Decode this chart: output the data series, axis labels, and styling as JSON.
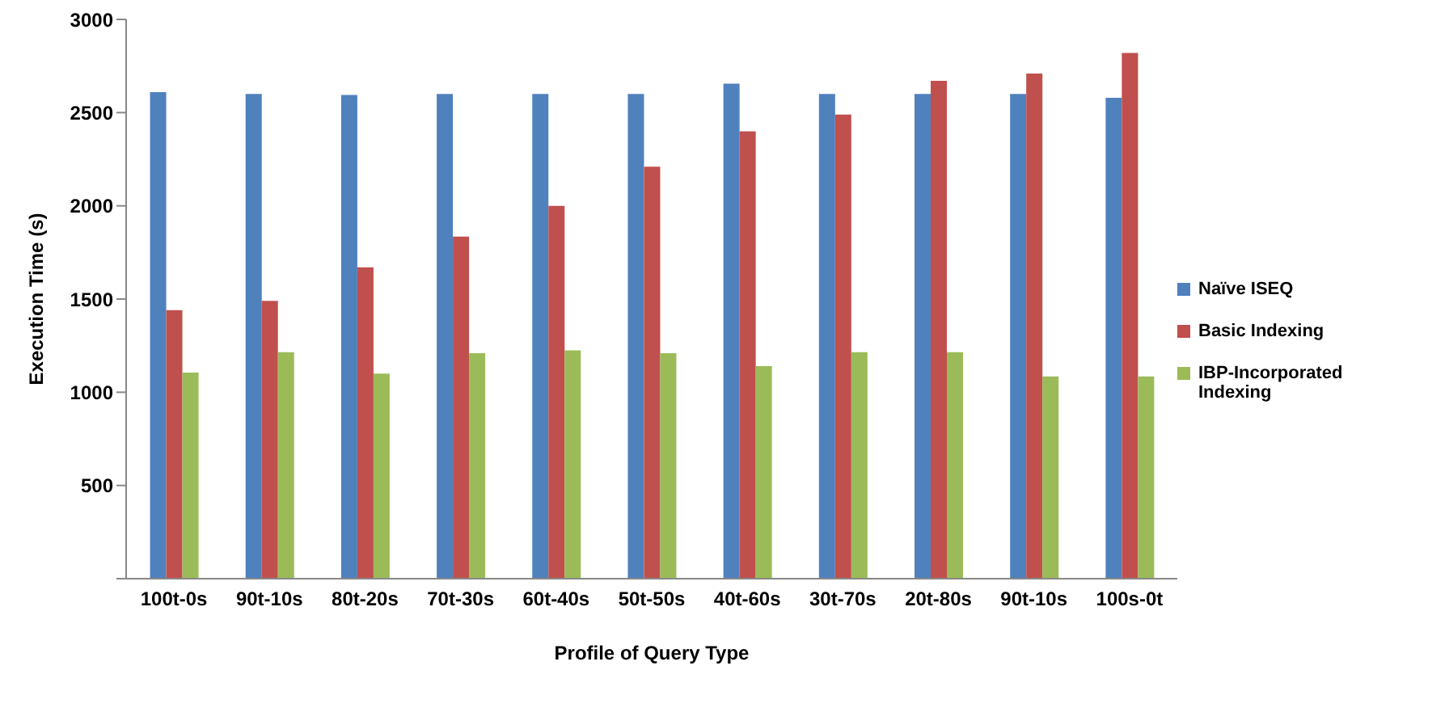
{
  "chart_data": {
    "type": "bar",
    "xlabel": "Profile of Query Type",
    "ylabel": "Execution Time (s)",
    "categories": [
      "100t-0s",
      "90t-10s",
      "80t-20s",
      "70t-30s",
      "60t-40s",
      "50t-50s",
      "40t-60s",
      "30t-70s",
      "20t-80s",
      "90t-10s",
      "100s-0t"
    ],
    "series": [
      {
        "name": "Naïve ISEQ",
        "color": "#4f81bd",
        "values": [
          2610,
          2600,
          2595,
          2600,
          2600,
          2600,
          2655,
          2600,
          2600,
          2600,
          2580
        ]
      },
      {
        "name": "Basic Indexing",
        "color": "#c0504d",
        "values": [
          1440,
          1490,
          1670,
          1835,
          2000,
          2210,
          2400,
          2490,
          2670,
          2710,
          2820
        ]
      },
      {
        "name": "IBP-Incorporated Indexing",
        "color": "#9bbb59",
        "values": [
          1105,
          1215,
          1100,
          1210,
          1225,
          1210,
          1140,
          1215,
          1215,
          1085,
          1085
        ]
      }
    ],
    "ylim": [
      0,
      3000
    ],
    "yticks": [
      {
        "value": 0,
        "label": null
      },
      500,
      1000,
      1500,
      2000,
      2500,
      3000
    ],
    "grid": false,
    "legend": "right"
  }
}
